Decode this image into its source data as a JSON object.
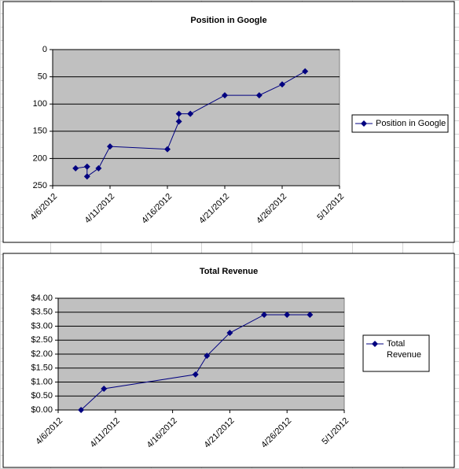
{
  "chart_data": [
    {
      "type": "line",
      "title": "Position in Google",
      "x": [
        "4/8/2012",
        "4/9/2012",
        "4/9/2012",
        "4/10/2012",
        "4/11/2012",
        "4/16/2012",
        "4/17/2012",
        "4/17/2012",
        "4/18/2012",
        "4/21/2012",
        "4/24/2012",
        "4/26/2012",
        "4/28/2012"
      ],
      "series": [
        {
          "name": "Position in Google",
          "color": "#000080",
          "values": [
            218,
            215,
            233,
            218,
            178,
            183,
            132,
            118,
            118,
            84,
            84,
            64,
            40
          ]
        }
      ],
      "xlim": [
        "4/6/2012",
        "5/1/2012"
      ],
      "xticks": [
        "4/6/2012",
        "4/11/2012",
        "4/16/2012",
        "4/21/2012",
        "4/26/2012",
        "5/1/2012"
      ],
      "ylim": [
        0,
        250
      ],
      "yticks": [
        0,
        50,
        100,
        150,
        200,
        250
      ],
      "y_reversed": true,
      "grid": true,
      "legend": "right"
    },
    {
      "type": "line",
      "title": "Total Revenue",
      "x": [
        "4/8/2012",
        "4/10/2012",
        "4/18/2012",
        "4/19/2012",
        "4/21/2012",
        "4/24/2012",
        "4/26/2012",
        "4/28/2012"
      ],
      "series": [
        {
          "name": "Total Revenue",
          "color": "#000080",
          "values": [
            0,
            0.76,
            1.27,
            1.94,
            2.76,
            3.41,
            3.41,
            3.41
          ]
        }
      ],
      "xlim": [
        "4/6/2012",
        "5/1/2012"
      ],
      "xticks": [
        "4/6/2012",
        "4/11/2012",
        "4/16/2012",
        "4/21/2012",
        "4/26/2012",
        "5/1/2012"
      ],
      "ylim": [
        0,
        4
      ],
      "yticks": [
        {
          "value": 0,
          "label": "$0.00"
        },
        {
          "value": 0.5,
          "label": "$0.50"
        },
        {
          "value": 1,
          "label": "$1.00"
        },
        {
          "value": 1.5,
          "label": "$1.50"
        },
        {
          "value": 2,
          "label": "$2.00"
        },
        {
          "value": 2.5,
          "label": "$2.50"
        },
        {
          "value": 3,
          "label": "$3.00"
        },
        {
          "value": 3.5,
          "label": "$3.50"
        },
        {
          "value": 4,
          "label": "$4.00"
        }
      ],
      "y_reversed": false,
      "grid": true,
      "legend": "right"
    }
  ]
}
